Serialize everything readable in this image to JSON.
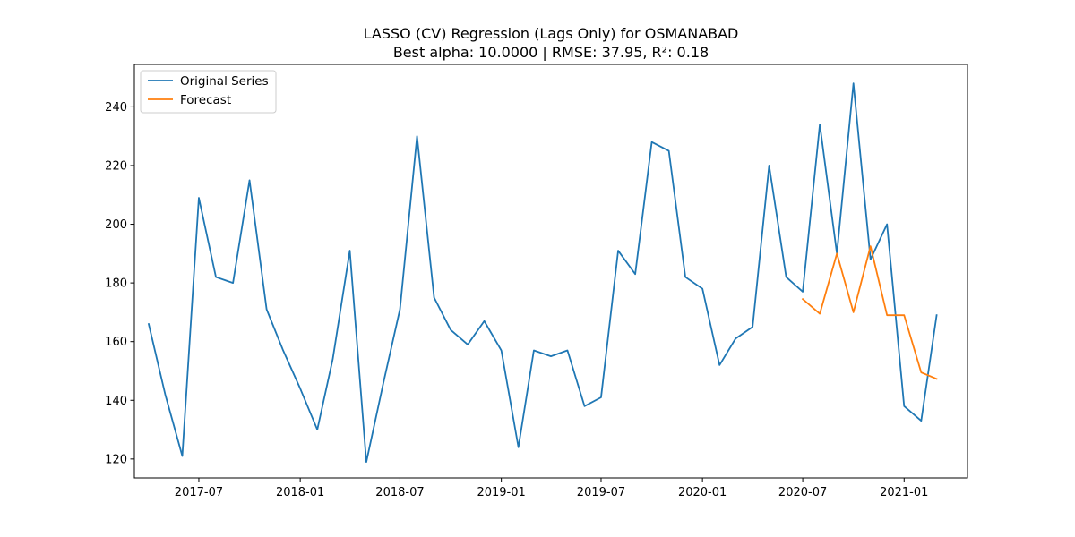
{
  "chart_data": {
    "type": "line",
    "title": "LASSO (CV) Regression (Lags Only) for OSMANABAD",
    "subtitle": "Best alpha: 10.0000 | RMSE: 37.95, R²: 0.18",
    "xlabel": "",
    "ylabel": "",
    "x_ticks": [
      "2017-07",
      "2018-01",
      "2018-07",
      "2019-01",
      "2019-07",
      "2020-01",
      "2020-07",
      "2021-01"
    ],
    "y_ticks": [
      120,
      140,
      160,
      180,
      200,
      220,
      240
    ],
    "xlim": [
      "2017-03-06",
      "2021-04-26"
    ],
    "ylim": [
      113.55,
      254.45
    ],
    "grid": false,
    "legend_position": "top-left",
    "series": [
      {
        "name": "Original Series",
        "color": "#1f77b4",
        "x": [
          "2017-04-01",
          "2017-05-01",
          "2017-06-01",
          "2017-07-01",
          "2017-08-01",
          "2017-09-01",
          "2017-10-01",
          "2017-11-01",
          "2017-12-01",
          "2018-01-01",
          "2018-02-01",
          "2018-03-01",
          "2018-04-01",
          "2018-05-01",
          "2018-06-01",
          "2018-07-01",
          "2018-08-01",
          "2018-09-01",
          "2018-10-01",
          "2018-11-01",
          "2018-12-01",
          "2019-01-01",
          "2019-02-01",
          "2019-03-01",
          "2019-04-01",
          "2019-05-01",
          "2019-06-01",
          "2019-07-01",
          "2019-08-01",
          "2019-09-01",
          "2019-10-01",
          "2019-11-01",
          "2019-12-01",
          "2020-01-01",
          "2020-02-01",
          "2020-03-01",
          "2020-04-01",
          "2020-05-01",
          "2020-06-01",
          "2020-07-01",
          "2020-08-01",
          "2020-09-01",
          "2020-10-01",
          "2020-11-01",
          "2020-12-01",
          "2021-01-01",
          "2021-02-01",
          "2021-03-01"
        ],
        "values": [
          166,
          142,
          121,
          209,
          182,
          180,
          215,
          171,
          157,
          144,
          130,
          154,
          191,
          119,
          146,
          171,
          230,
          175,
          164,
          159,
          167,
          157,
          124,
          157,
          155,
          157,
          138,
          141,
          191,
          183,
          228,
          225,
          182,
          178,
          152,
          161,
          165,
          220,
          182,
          177,
          234,
          190,
          248,
          188,
          200,
          138,
          133,
          169
        ]
      },
      {
        "name": "Forecast",
        "color": "#ff7f0e",
        "x": [
          "2020-07-01",
          "2020-08-01",
          "2020-09-01",
          "2020-10-01",
          "2020-11-01",
          "2020-12-01",
          "2021-01-01",
          "2021-02-01",
          "2021-03-01"
        ],
        "values": [
          174.5,
          169.5,
          190,
          170,
          192.5,
          169,
          169,
          149.5,
          147.3
        ]
      }
    ]
  }
}
